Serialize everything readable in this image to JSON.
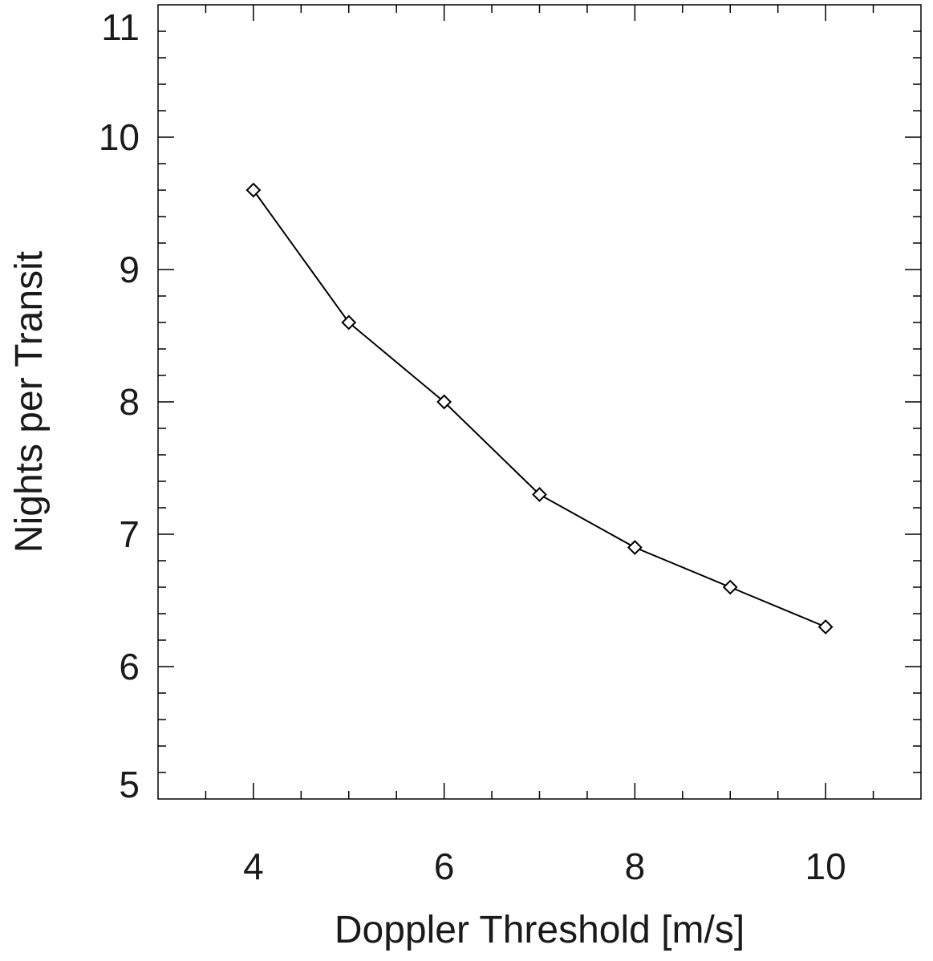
{
  "chart_data": {
    "type": "line",
    "title": "",
    "xlabel": "Doppler Threshold [m/s]",
    "ylabel": "Nights per Transit",
    "xlim": [
      3,
      11
    ],
    "ylim": [
      5,
      11
    ],
    "xticks": [
      4,
      6,
      8,
      10
    ],
    "yticks": [
      5,
      6,
      7,
      8,
      9,
      10,
      11
    ],
    "x_minor_step": 0.5,
    "y_minor_step": 0.2,
    "marker": "diamond",
    "grid": false,
    "series": [
      {
        "x": [
          4,
          5,
          6,
          7,
          8,
          9,
          10
        ],
        "values": [
          9.6,
          8.6,
          8.0,
          7.3,
          6.9,
          6.6,
          6.3
        ]
      }
    ]
  }
}
